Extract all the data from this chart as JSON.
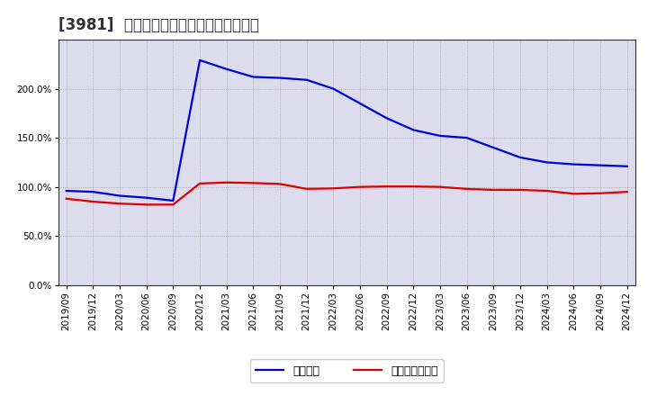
{
  "title": "[3981]  固定比率、固定長期適合率の推移",
  "x_labels": [
    "2019/09",
    "2019/12",
    "2020/03",
    "2020/06",
    "2020/09",
    "2020/12",
    "2021/03",
    "2021/06",
    "2021/09",
    "2021/12",
    "2022/03",
    "2022/06",
    "2022/09",
    "2022/12",
    "2023/03",
    "2023/06",
    "2023/09",
    "2023/12",
    "2024/03",
    "2024/06",
    "2024/09",
    "2024/12"
  ],
  "fixed_ratio": [
    96.0,
    95.0,
    91.0,
    89.0,
    86.0,
    229.0,
    220.0,
    212.0,
    211.0,
    209.0,
    200.0,
    185.0,
    170.0,
    158.0,
    152.0,
    150.0,
    140.0,
    130.0,
    125.0,
    123.0,
    122.0,
    121.0
  ],
  "fixed_long_ratio": [
    88.0,
    85.0,
    83.0,
    82.0,
    82.0,
    103.5,
    104.5,
    104.0,
    103.0,
    98.0,
    98.5,
    100.0,
    100.5,
    100.5,
    100.0,
    98.0,
    97.0,
    97.0,
    96.0,
    93.0,
    93.5,
    95.0
  ],
  "line_color_fixed": "#0000dd",
  "line_color_long": "#dd0000",
  "background_color": "#ffffff",
  "grid_color": "#999999",
  "plot_bg_color": "#dcdcec",
  "ylim": [
    0,
    250
  ],
  "yticks": [
    0,
    50,
    100,
    150,
    200
  ],
  "ytick_labels": [
    "0.0%",
    "50.0%",
    "100.0%",
    "150.0%",
    "200.0%"
  ],
  "legend_fixed": "固定比率",
  "legend_long": "固定長期適合率",
  "title_fontsize": 12,
  "legend_fontsize": 9,
  "tick_fontsize": 7.5
}
